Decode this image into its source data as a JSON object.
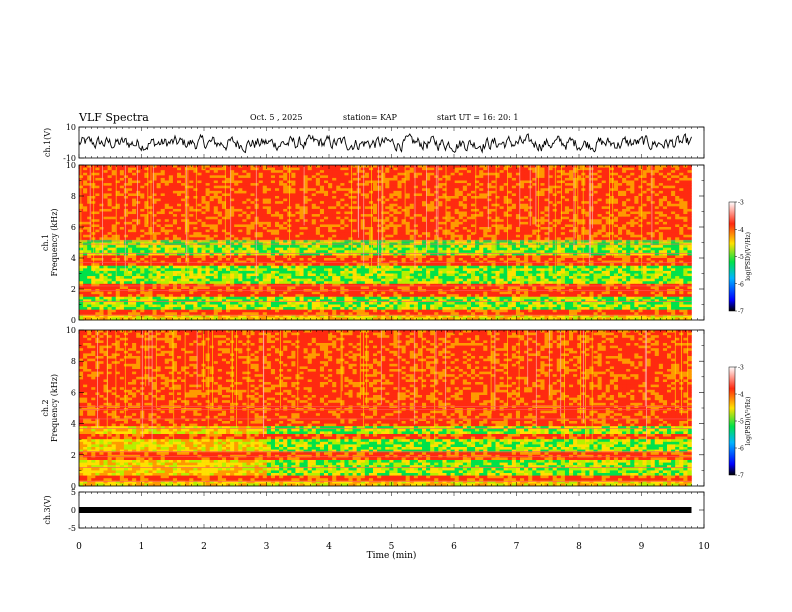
{
  "header": {
    "title": "VLF Spectra",
    "date": "Oct. 5 , 2025",
    "station": "station= KAP",
    "start": "start  UT =   16: 20: 1"
  },
  "colors": {
    "spec_low": "#00e24a",
    "spec_mid": "#ffe100",
    "spec_high": "#ff2a10",
    "trace": "#000000"
  },
  "chart_data": [
    {
      "id": "ch1-waveform",
      "type": "line",
      "ylabel": "ch.1(V)",
      "ylim": [
        -10,
        10
      ],
      "yticks": [
        "10",
        "-10"
      ],
      "xlim": [
        0,
        10
      ],
      "data_end_min": 9.8,
      "description_of_series": "noisy waveform oscillating mostly between about -5 and 5 V"
    },
    {
      "id": "ch1-spectrogram",
      "type": "heatmap",
      "ylabel": "ch.1\nFrequency  (kHz)",
      "ylabel_lines": [
        "ch.1",
        "Frequency  (kHz)"
      ],
      "ylim": [
        0,
        10
      ],
      "yticks": [
        "0",
        "2",
        "4",
        "6",
        "8",
        "10"
      ],
      "xlim": [
        0,
        10
      ],
      "data_end_min": 9.8,
      "colorbar": {
        "label": "log(PSD)(V²/Hz)",
        "range": [
          -7,
          -3
        ],
        "ticks": [
          "-3",
          "-4",
          "-5",
          "-6",
          "-7"
        ]
      },
      "low_power_bands_khz": [
        [
          0.6,
          1.5
        ],
        [
          2.3,
          3.5
        ],
        [
          4.1,
          5.2
        ]
      ]
    },
    {
      "id": "ch2-spectrogram",
      "type": "heatmap",
      "ylabel": "ch.2\nFrequency  (kHz)",
      "ylabel_lines": [
        "ch.2",
        "Frequency  (kHz)"
      ],
      "ylim": [
        0,
        10
      ],
      "yticks": [
        "0",
        "2",
        "4",
        "6",
        "8",
        "10"
      ],
      "xlim": [
        0,
        10
      ],
      "data_end_min": 9.8,
      "colorbar": {
        "label": "log(PSD)(V²/Hz)",
        "range": [
          -7,
          -3
        ],
        "ticks": [
          "-3",
          "-4",
          "-5",
          "-6",
          "-7"
        ]
      },
      "low_power_bands_khz": [
        [
          0.7,
          1.6
        ],
        [
          2.1,
          3.0
        ],
        [
          3.3,
          3.8
        ]
      ]
    },
    {
      "id": "ch3-waveform",
      "type": "line",
      "ylabel": "ch.3(V)",
      "ylim": [
        -5,
        5
      ],
      "yticks": [
        "5",
        "0",
        "-5"
      ],
      "xlim": [
        0,
        10
      ],
      "data_end_min": 9.8,
      "series_level_v": 0
    }
  ],
  "xaxis": {
    "label": "Time  (min)",
    "ticks": [
      "0",
      "1",
      "2",
      "3",
      "4",
      "5",
      "6",
      "7",
      "8",
      "9",
      "10"
    ]
  }
}
